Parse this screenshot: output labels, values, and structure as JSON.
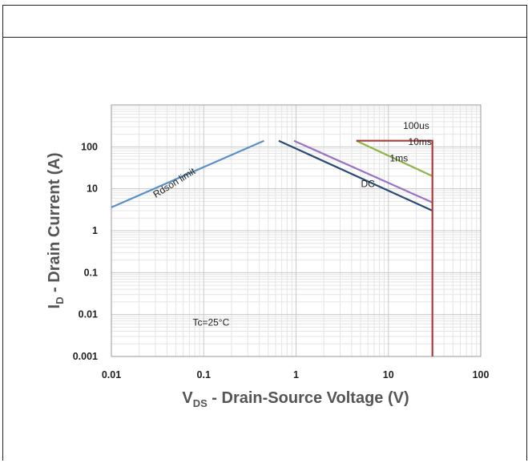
{
  "chart_data": {
    "type": "line",
    "xscale": "log",
    "yscale": "log",
    "xlim": [
      0.01,
      100
    ],
    "ylim": [
      0.001,
      1000
    ],
    "x_ticks": [
      "0.01",
      "0.1",
      "1",
      "10",
      "100"
    ],
    "y_ticks": [
      "0.001",
      "0.01",
      "0.1",
      "1",
      "10",
      "100"
    ],
    "xlabel": {
      "main": "V",
      "sub": "DS",
      "rest": " - Drain-Source Voltage (V)"
    },
    "ylabel": {
      "main": "I",
      "sub": "D",
      "rest": " - Drain Current (A)"
    },
    "grid": true,
    "series": [
      {
        "name": "Rdson limit",
        "color": "#5b8fc7",
        "points": [
          [
            0.01,
            3.6
          ],
          [
            0.45,
            140
          ]
        ]
      },
      {
        "name": "DC",
        "color": "#2a4a72",
        "points": [
          [
            0.65,
            140
          ],
          [
            30,
            3.0
          ]
        ]
      },
      {
        "name": "1ms",
        "color": "#9a72c4",
        "points": [
          [
            0.95,
            140
          ],
          [
            30,
            4.7
          ]
        ]
      },
      {
        "name": "10ms",
        "color": "#8fb54a",
        "points": [
          [
            4.5,
            140
          ],
          [
            30,
            20
          ]
        ]
      },
      {
        "name": "100us",
        "color": "#b03a3a",
        "points": [
          [
            4.5,
            140
          ],
          [
            30,
            140
          ],
          [
            30,
            0.001
          ]
        ]
      }
    ],
    "curve_labels": [
      {
        "text": "Rdson limit",
        "x": 0.05,
        "y": 12,
        "rotate": -32
      },
      {
        "text": "DC",
        "x": 6.0,
        "y": 11
      },
      {
        "text": "1ms",
        "x": 13,
        "y": 45
      },
      {
        "text": "10ms",
        "x": 22,
        "y": 110
      },
      {
        "text": "100us",
        "x": 20,
        "y": 270
      }
    ],
    "annotation": {
      "text": "Tc=25°C",
      "x": 0.12,
      "y": 0.0055
    }
  }
}
